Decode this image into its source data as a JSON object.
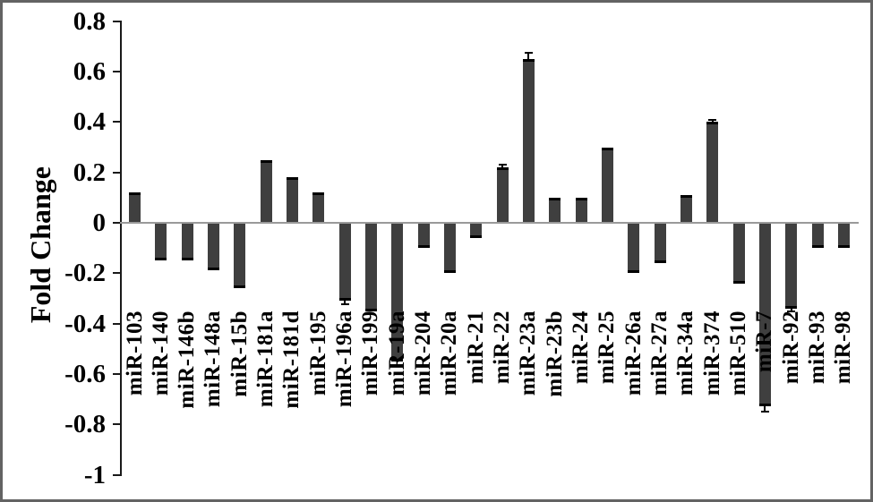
{
  "figure": {
    "background": "#ffffff",
    "border_color": "#636363"
  },
  "chart_data": {
    "type": "bar",
    "title": "",
    "xlabel": "",
    "ylabel": "Fold Change",
    "ylim": [
      -1,
      0.8
    ],
    "ytick_labels": [
      "0.8",
      "0.6",
      "0.4",
      "0.2",
      "0",
      "-0.2",
      "-0.4",
      "-0.6",
      "-0.8",
      "-1"
    ],
    "grid": false,
    "legend": "none",
    "bar_color": "#3f3f3f",
    "error_bar_color": "#000000",
    "categories": [
      "miR-103",
      "miR-140",
      "miR-146b",
      "miR-148a",
      "miR-15b",
      "miR-181a",
      "miR-181d",
      "miR-195",
      "miR-196a",
      "miR-199",
      "miR-19a",
      "miR-204",
      "miR-20a",
      "miR-21",
      "miR-22",
      "miR-23a",
      "miR-23b",
      "miR-24",
      "miR-25",
      "miR-26a",
      "miR-27a",
      "miR-34a",
      "miR-374",
      "miR-510",
      "miR-7",
      "miR-92",
      "miR-93",
      "miR-98"
    ],
    "values": [
      0.12,
      -0.15,
      -0.15,
      -0.19,
      -0.26,
      0.25,
      0.18,
      0.12,
      -0.31,
      -0.35,
      -0.55,
      -0.1,
      -0.2,
      -0.06,
      0.22,
      0.65,
      0.1,
      0.1,
      0.3,
      -0.2,
      -0.16,
      0.11,
      0.4,
      -0.24,
      -0.73,
      -0.34,
      -0.1,
      -0.1
    ],
    "errors": [
      0,
      0,
      0,
      0,
      0,
      0,
      0,
      0,
      0.012,
      0,
      0,
      0,
      0,
      0,
      0.012,
      0.025,
      0,
      0,
      0,
      0,
      0,
      0,
      0.008,
      0,
      0.018,
      0.012,
      0,
      0
    ]
  }
}
